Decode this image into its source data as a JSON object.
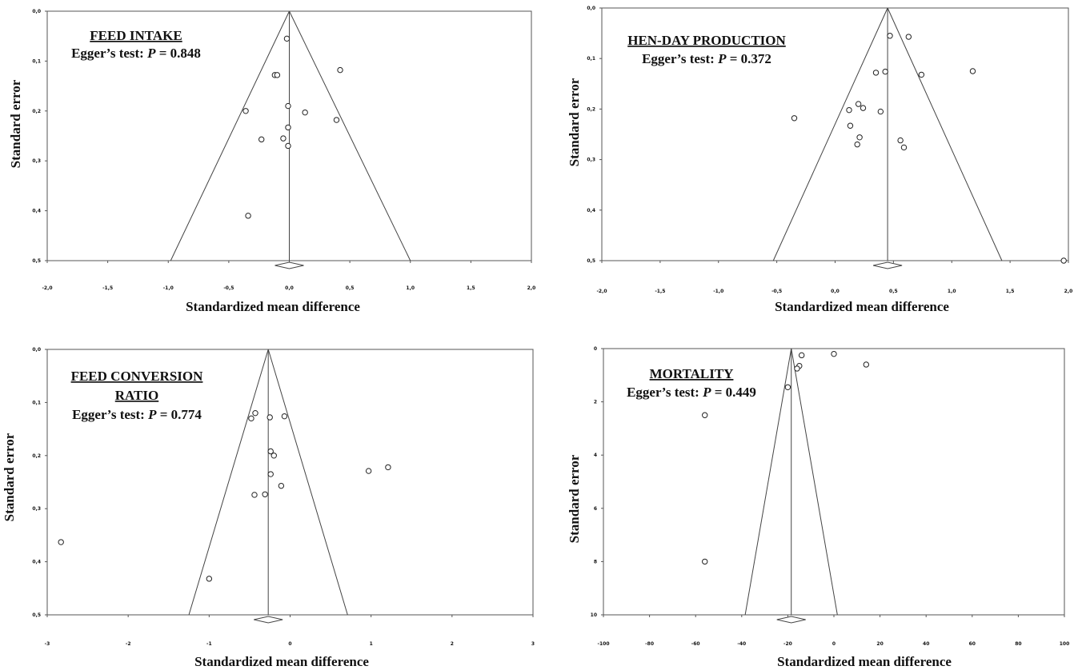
{
  "figure": {
    "panels": [
      {
        "title": [
          "FEED INTAKE"
        ],
        "egger_prefix": "Egger’s test: ",
        "egger_p": "P",
        "egger_value": " = 0.848"
      },
      {
        "title": [
          "HEN-DAY PRODUCTION"
        ],
        "egger_prefix": "Egger’s test: ",
        "egger_p": "P",
        "egger_value": " = 0.372"
      },
      {
        "title": [
          "FEED CONVERSION",
          "RATIO"
        ],
        "egger_prefix": "Egger’s test: ",
        "egger_p": "P",
        "egger_value": " = 0.774"
      },
      {
        "title": [
          "MORTALITY"
        ],
        "egger_prefix": "Egger’s test: ",
        "egger_p": "P",
        "egger_value": " = 0.449"
      }
    ]
  },
  "chart_data": [
    {
      "type": "scatter",
      "title": "FEED INTAKE",
      "annotation": "Egger’s test: P = 0.848",
      "xlabel": "Standardized mean difference",
      "ylabel": "Standard error",
      "xlim": [
        -2.0,
        2.0
      ],
      "ylim": [
        0.0,
        0.5
      ],
      "y_inverted": true,
      "x_ticks": [
        "-2,0",
        "-1,5",
        "-1,0",
        "-0,5",
        "0,0",
        "0,5",
        "1,0",
        "1,5",
        "2,0"
      ],
      "x_tick_values": [
        -2.0,
        -1.5,
        -1.0,
        -0.5,
        0.0,
        0.5,
        1.0,
        1.5,
        2.0
      ],
      "y_ticks": [
        "0,0",
        "0,1",
        "0,2",
        "0,3",
        "0,4",
        "0,5"
      ],
      "y_tick_values": [
        0.0,
        0.1,
        0.2,
        0.3,
        0.4,
        0.5
      ],
      "pooled_estimate": 0.0,
      "funnel_base": [
        -0.98,
        1.0
      ],
      "points": [
        {
          "x": -0.02,
          "y": 0.055
        },
        {
          "x": 0.42,
          "y": 0.118
        },
        {
          "x": -0.12,
          "y": 0.128
        },
        {
          "x": -0.1,
          "y": 0.128
        },
        {
          "x": -0.01,
          "y": 0.19
        },
        {
          "x": -0.36,
          "y": 0.2
        },
        {
          "x": 0.13,
          "y": 0.203
        },
        {
          "x": 0.39,
          "y": 0.218
        },
        {
          "x": -0.01,
          "y": 0.233
        },
        {
          "x": -0.05,
          "y": 0.255
        },
        {
          "x": -0.23,
          "y": 0.257
        },
        {
          "x": -0.01,
          "y": 0.27
        },
        {
          "x": -0.34,
          "y": 0.41
        }
      ]
    },
    {
      "type": "scatter",
      "title": "HEN-DAY PRODUCTION",
      "annotation": "Egger’s test: P = 0.372",
      "xlabel": "Standardized mean difference",
      "ylabel": "Standard error",
      "xlim": [
        -2.0,
        2.0
      ],
      "ylim": [
        0.0,
        0.5
      ],
      "y_inverted": true,
      "x_ticks": [
        "-2,0",
        "-1,5",
        "-1,0",
        "-0,5",
        "0,0",
        "0,5",
        "1,0",
        "1,5",
        "2,0"
      ],
      "x_tick_values": [
        -2.0,
        -1.5,
        -1.0,
        -0.5,
        0.0,
        0.5,
        1.0,
        1.5,
        2.0
      ],
      "y_ticks": [
        "0,0",
        "0,1",
        "0,2",
        "0,3",
        "0,4",
        "0,5"
      ],
      "y_tick_values": [
        0.0,
        0.1,
        0.2,
        0.3,
        0.4,
        0.5
      ],
      "pooled_estimate": 0.45,
      "funnel_base": [
        -0.53,
        1.43
      ],
      "points": [
        {
          "x": 0.47,
          "y": 0.055
        },
        {
          "x": 0.63,
          "y": 0.057
        },
        {
          "x": 1.18,
          "y": 0.125
        },
        {
          "x": 0.43,
          "y": 0.126
        },
        {
          "x": 0.35,
          "y": 0.128
        },
        {
          "x": 0.74,
          "y": 0.132
        },
        {
          "x": 0.2,
          "y": 0.19
        },
        {
          "x": 0.24,
          "y": 0.198
        },
        {
          "x": 0.12,
          "y": 0.202
        },
        {
          "x": 0.39,
          "y": 0.205
        },
        {
          "x": -0.35,
          "y": 0.218
        },
        {
          "x": 0.13,
          "y": 0.233
        },
        {
          "x": 0.21,
          "y": 0.256
        },
        {
          "x": 0.56,
          "y": 0.262
        },
        {
          "x": 0.19,
          "y": 0.27
        },
        {
          "x": 0.59,
          "y": 0.276
        },
        {
          "x": 1.96,
          "y": 0.5
        }
      ]
    },
    {
      "type": "scatter",
      "title": "FEED CONVERSION RATIO",
      "annotation": "Egger’s test: P = 0.774",
      "xlabel": "Standardized mean difference",
      "ylabel": "Standard error",
      "xlim": [
        -3,
        3
      ],
      "ylim": [
        0.0,
        0.5
      ],
      "y_inverted": true,
      "x_ticks": [
        "-3",
        "-2",
        "-1",
        "0",
        "1",
        "2",
        "3"
      ],
      "x_tick_values": [
        -3,
        -2,
        -1,
        0,
        1,
        2,
        3
      ],
      "y_ticks": [
        "0,0",
        "0,1",
        "0,2",
        "0,3",
        "0,4",
        "0,5"
      ],
      "y_tick_values": [
        0.0,
        0.1,
        0.2,
        0.3,
        0.4,
        0.5
      ],
      "pooled_estimate": -0.27,
      "funnel_base": [
        -1.25,
        0.71
      ],
      "points": [
        {
          "x": -0.43,
          "y": 0.12
        },
        {
          "x": -0.48,
          "y": 0.13
        },
        {
          "x": -0.25,
          "y": 0.128
        },
        {
          "x": -0.07,
          "y": 0.126
        },
        {
          "x": -0.24,
          "y": 0.192
        },
        {
          "x": -0.2,
          "y": 0.2
        },
        {
          "x": -0.24,
          "y": 0.235
        },
        {
          "x": 0.97,
          "y": 0.229
        },
        {
          "x": 1.21,
          "y": 0.222
        },
        {
          "x": -0.11,
          "y": 0.257
        },
        {
          "x": -0.44,
          "y": 0.274
        },
        {
          "x": -0.31,
          "y": 0.273
        },
        {
          "x": -2.83,
          "y": 0.363
        },
        {
          "x": -1.0,
          "y": 0.432
        }
      ]
    },
    {
      "type": "scatter",
      "title": "MORTALITY",
      "annotation": "Egger’s test: P = 0.449",
      "xlabel": "Standardized mean difference",
      "ylabel": "Standard error",
      "xlim": [
        -100,
        100
      ],
      "ylim": [
        0,
        10
      ],
      "y_inverted": true,
      "x_ticks": [
        "-100",
        "-80",
        "-60",
        "-40",
        "-20",
        "0",
        "20",
        "40",
        "60",
        "80",
        "100"
      ],
      "x_tick_values": [
        -100,
        -80,
        -60,
        -40,
        -20,
        0,
        20,
        40,
        60,
        80,
        100
      ],
      "y_ticks": [
        "0",
        "2",
        "4",
        "6",
        "8",
        "10"
      ],
      "y_tick_values": [
        0,
        2,
        4,
        6,
        8,
        10
      ],
      "pooled_estimate": -18.5,
      "funnel_base": [
        -38.5,
        1.5
      ],
      "points": [
        {
          "x": -14,
          "y": 0.25
        },
        {
          "x": 0,
          "y": 0.2
        },
        {
          "x": 14,
          "y": 0.6
        },
        {
          "x": -15,
          "y": 0.65
        },
        {
          "x": -16,
          "y": 0.75
        },
        {
          "x": -20,
          "y": 1.45
        },
        {
          "x": -56,
          "y": 2.5
        },
        {
          "x": -56,
          "y": 8.0
        }
      ]
    }
  ]
}
